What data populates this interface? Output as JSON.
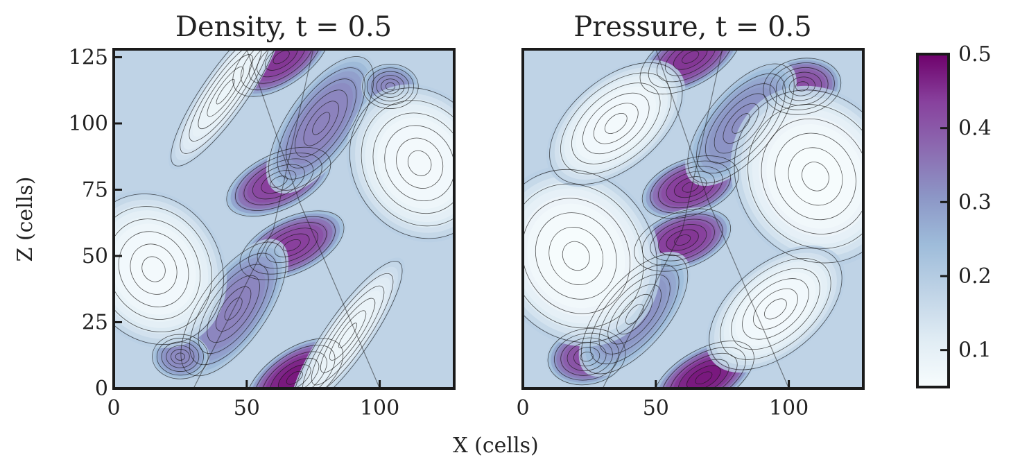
{
  "figure": {
    "xlabel": "X (cells)",
    "ylabel": "Z (cells)",
    "colormap": "BuPu",
    "colormap_stops": [
      "#f7fcfd",
      "#e0ecf4",
      "#bfd3e6",
      "#9ebcda",
      "#8c96c6",
      "#8c6bb1",
      "#88419d",
      "#6e016b"
    ],
    "contour_color": "#1a1a1a"
  },
  "chart_data": [
    {
      "type": "heatmap",
      "title": "Density, t = 0.5",
      "field": "density",
      "xlabel": "X (cells)",
      "ylabel": "Z (cells)",
      "xlim": [
        0,
        128
      ],
      "ylim": [
        0,
        128
      ],
      "x_ticks": [
        "0",
        "50",
        "100"
      ],
      "y_ticks": [
        "0",
        "25",
        "50",
        "75",
        "100",
        "125"
      ],
      "blobs": [
        {
          "x": 68,
          "z": 4,
          "peak": 0.48,
          "sx": 10,
          "sz": 5,
          "angle": 35
        },
        {
          "x": 63,
          "z": 125,
          "peak": 0.45,
          "sx": 10,
          "sz": 5,
          "angle": 35
        },
        {
          "x": 62,
          "z": 78,
          "peak": 0.44,
          "sx": 10,
          "sz": 5,
          "angle": 25
        },
        {
          "x": 67,
          "z": 54,
          "peak": 0.44,
          "sx": 10,
          "sz": 5,
          "angle": 25
        },
        {
          "x": 78,
          "z": 100,
          "peak": 0.34,
          "sx": 14,
          "sz": 6,
          "angle": 55
        },
        {
          "x": 45,
          "z": 30,
          "peak": 0.34,
          "sx": 14,
          "sz": 6,
          "angle": 55
        },
        {
          "x": 25,
          "z": 12,
          "peak": 0.33,
          "sx": 5,
          "sz": 4,
          "angle": 0
        },
        {
          "x": 104,
          "z": 114,
          "peak": 0.33,
          "sx": 5,
          "sz": 4,
          "angle": 0
        },
        {
          "x": 15,
          "z": 45,
          "peak": 0.06,
          "sx": 12,
          "sz": 14,
          "angle": 30
        },
        {
          "x": 115,
          "z": 85,
          "peak": 0.06,
          "sx": 12,
          "sz": 14,
          "angle": 30
        },
        {
          "x": 88,
          "z": 20,
          "peak": 0.08,
          "sx": 16,
          "sz": 4,
          "angle": 55
        },
        {
          "x": 42,
          "z": 112,
          "peak": 0.08,
          "sx": 16,
          "sz": 4,
          "angle": 55
        }
      ]
    },
    {
      "type": "heatmap",
      "title": "Pressure, t = 0.5",
      "field": "pressure",
      "xlabel": "X (cells)",
      "ylabel": "",
      "xlim": [
        0,
        128
      ],
      "ylim": [
        0,
        128
      ],
      "x_ticks": [
        "0",
        "50",
        "100"
      ],
      "y_ticks": [],
      "blobs": [
        {
          "x": 68,
          "z": 4,
          "peak": 0.48,
          "sx": 10,
          "sz": 5,
          "angle": 30
        },
        {
          "x": 63,
          "z": 125,
          "peak": 0.45,
          "sx": 10,
          "sz": 5,
          "angle": 30
        },
        {
          "x": 63,
          "z": 76,
          "peak": 0.45,
          "sx": 9,
          "sz": 5,
          "angle": 20
        },
        {
          "x": 60,
          "z": 56,
          "peak": 0.45,
          "sx": 9,
          "sz": 5,
          "angle": 20
        },
        {
          "x": 24,
          "z": 12,
          "peak": 0.42,
          "sx": 7,
          "sz": 5,
          "angle": 10
        },
        {
          "x": 105,
          "z": 114,
          "peak": 0.42,
          "sx": 7,
          "sz": 5,
          "angle": 10
        },
        {
          "x": 82,
          "z": 100,
          "peak": 0.32,
          "sx": 13,
          "sz": 6,
          "angle": 50
        },
        {
          "x": 42,
          "z": 28,
          "peak": 0.32,
          "sx": 13,
          "sz": 6,
          "angle": 50
        },
        {
          "x": 20,
          "z": 50,
          "peak": 0.05,
          "sx": 14,
          "sz": 16,
          "angle": 30
        },
        {
          "x": 110,
          "z": 80,
          "peak": 0.05,
          "sx": 14,
          "sz": 16,
          "angle": 30
        },
        {
          "x": 95,
          "z": 30,
          "peak": 0.06,
          "sx": 14,
          "sz": 8,
          "angle": 40
        },
        {
          "x": 35,
          "z": 100,
          "peak": 0.06,
          "sx": 14,
          "sz": 8,
          "angle": 40
        }
      ]
    }
  ],
  "colorbar": {
    "vmin": 0.05,
    "vmax": 0.5,
    "ticks": [
      0.1,
      0.2,
      0.3,
      0.4,
      0.5
    ],
    "tick_labels": [
      "0.1",
      "0.2",
      "0.3",
      "0.4",
      "0.5"
    ]
  }
}
